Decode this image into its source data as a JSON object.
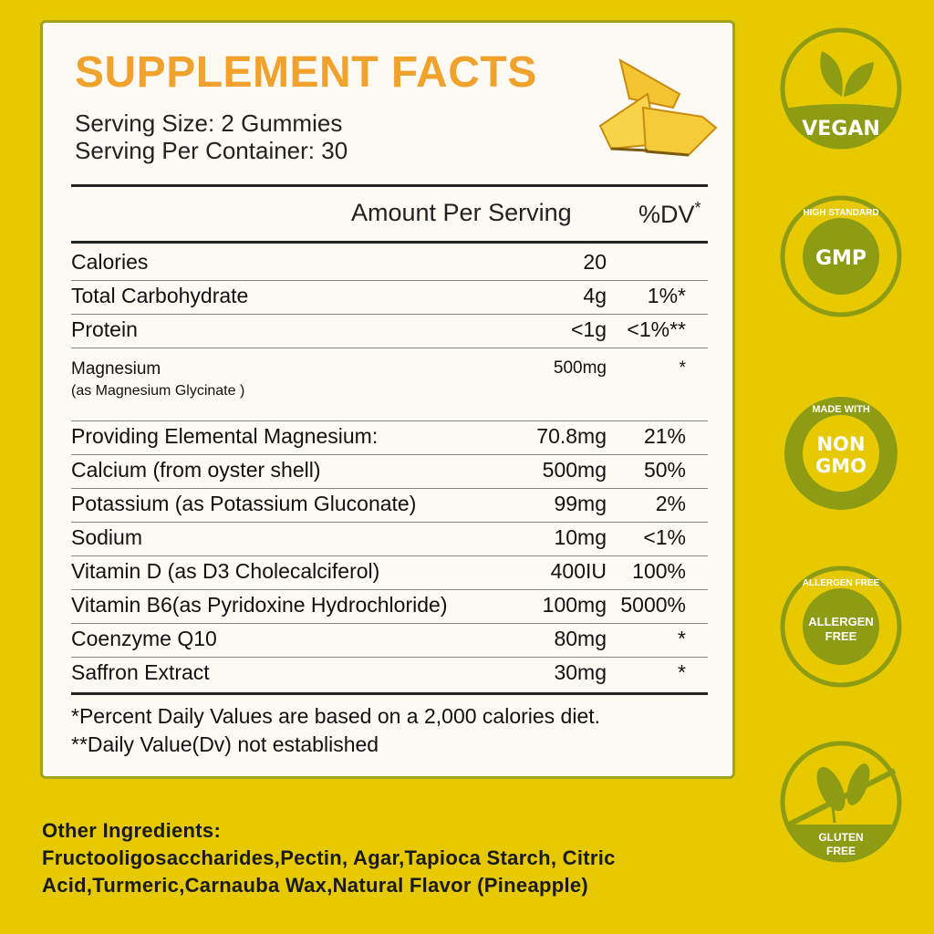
{
  "title": "SUPPLEMENT FACTS",
  "serving_size": "Serving Size: 2 Gummies",
  "servings_per_container": "Serving Per Container: 30",
  "header": {
    "amount": "Amount Per Serving",
    "dv": "%DV",
    "dv_mark": "*"
  },
  "rows": [
    {
      "name": "Calories",
      "amount": "20",
      "dv": ""
    },
    {
      "name": "Total Carbohydrate",
      "amount": "4g",
      "dv": "1%*"
    },
    {
      "name": "Protein",
      "amount": "<1g",
      "dv": "<1%**"
    },
    {
      "name": "Magnesium",
      "sub": "(as  Magnesium Glycinate )",
      "amount": "500mg",
      "dv": "*"
    },
    {
      "name": "Providing Elemental Magnesium:",
      "amount": "70.8mg",
      "dv": "21%"
    },
    {
      "name": "Calcium (from oyster shell)",
      "amount": "500mg",
      "dv": "50%"
    },
    {
      "name": "Potassium (as Potassium Gluconate)",
      "amount": "99mg",
      "dv": "2%"
    },
    {
      "name": "Sodium",
      "amount": "10mg",
      "dv": "<1%"
    },
    {
      "name": "Vitamin D (as D3 Cholecalciferol)",
      "amount": "400IU",
      "dv": "100%"
    },
    {
      "name": "Vitamin B6(as Pyridoxine Hydrochloride)",
      "amount": "100mg",
      "dv": "5000%"
    },
    {
      "name": "Coenzyme Q10",
      "amount": "80mg",
      "dv": "*"
    },
    {
      "name": "Saffron Extract",
      "amount": "30mg",
      "dv": "*"
    }
  ],
  "footnotes": [
    "*Percent Daily Values are based on a 2,000 calories diet.",
    "**Daily Value(Dv) not established"
  ],
  "other_ingredients": {
    "label": "Other Ingredients:",
    "line1": "Fructooligosaccharides,Pectin, Agar,Tapioca Starch, Citric",
    "line2": "Acid,Turmeric,Carnauba Wax,Natural Flavor (Pineapple)"
  },
  "badges": {
    "vegan": "VEGAN",
    "gmp": {
      "center": "GMP",
      "ring": "HIGH STANDARD"
    },
    "nongmo": {
      "center1": "NON",
      "center2": "GMO",
      "ring": "MADE WITH"
    },
    "allergen": {
      "center1": "ALLERGEN",
      "center2": "FREE",
      "ring": "ALLERGEN FREE"
    },
    "gluten": {
      "line1": "GLUTEN",
      "line2": "FREE"
    }
  },
  "colors": {
    "background": "#e6c900",
    "badge_green": "#8e9c14",
    "title_orange": "#f0a22c",
    "panel": "#fcfaf2"
  }
}
